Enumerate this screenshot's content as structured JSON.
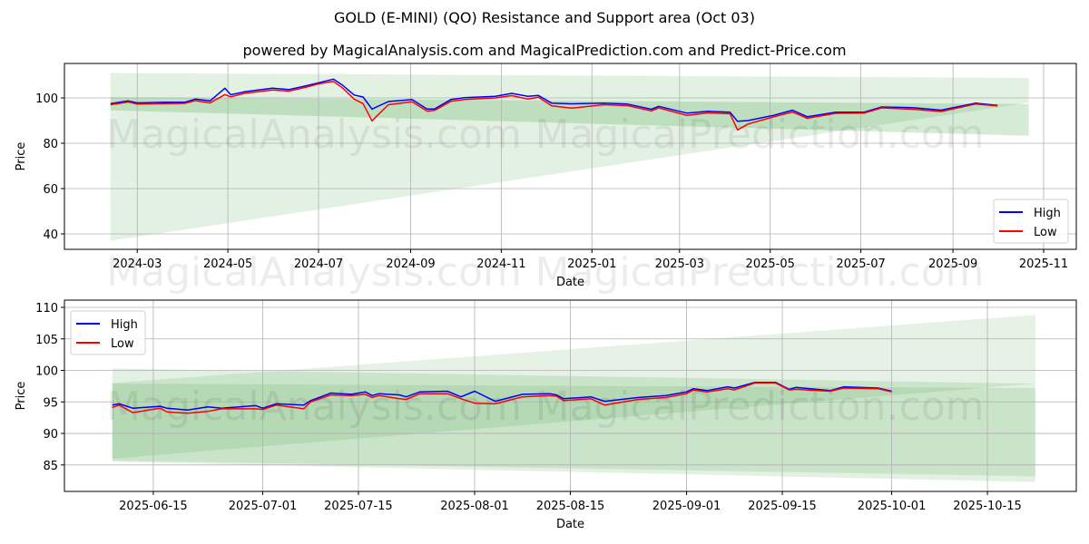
{
  "title": "GOLD (E-MINI) (QO) Resistance and Support area (Oct 03)",
  "subtitle": "powered by MagicalAnalysis.com and MagicalPrediction.com and Predict-Price.com",
  "watermarks": [
    "MagicalAnalysis.com",
    "MagicalPrediction.com"
  ],
  "colors": {
    "high": "#0000ff",
    "low": "#ff0000",
    "band": "#008000"
  },
  "chart_data": [
    {
      "type": "line",
      "xlabel": "Date",
      "ylabel": "Price",
      "xlim": [
        "2024-01-12",
        "2025-11-23"
      ],
      "ylim": [
        33.2,
        115.2
      ],
      "grid": true,
      "legend": "lower-right",
      "yticks": [
        40,
        60,
        80,
        100
      ],
      "xticks": [
        {
          "date": "2024-03-01",
          "label": "2024-03"
        },
        {
          "date": "2024-05-01",
          "label": "2024-05"
        },
        {
          "date": "2024-07-01",
          "label": "2024-07"
        },
        {
          "date": "2024-09-01",
          "label": "2024-09"
        },
        {
          "date": "2024-11-01",
          "label": "2024-11"
        },
        {
          "date": "2025-01-01",
          "label": "2025-01"
        },
        {
          "date": "2025-03-01",
          "label": "2025-03"
        },
        {
          "date": "2025-05-01",
          "label": "2025-05"
        },
        {
          "date": "2025-07-01",
          "label": "2025-07"
        },
        {
          "date": "2025-09-01",
          "label": "2025-09"
        },
        {
          "date": "2025-11-01",
          "label": "2025-11"
        }
      ],
      "bands": [
        {
          "start": "2024-02-12",
          "end": "2025-10-22",
          "start_range": [
            37,
            111
          ],
          "end_range": [
            97.9,
            108.8
          ],
          "opacity": 0.11
        },
        {
          "start": "2024-02-12",
          "end": "2025-10-22",
          "start_range": [
            94.5,
            100.3
          ],
          "end_range": [
            83.3,
            97.3
          ],
          "opacity": 0.16
        }
      ],
      "x": [
        "2024-02-12",
        "2024-02-24",
        "2024-03-01",
        "2024-03-19",
        "2024-04-02",
        "2024-04-09",
        "2024-04-19",
        "2024-04-29",
        "2024-05-03",
        "2024-05-12",
        "2024-05-31",
        "2024-06-11",
        "2024-06-23",
        "2024-07-01",
        "2024-07-11",
        "2024-07-17",
        "2024-07-25",
        "2024-07-31",
        "2024-08-06",
        "2024-08-17",
        "2024-09-02",
        "2024-09-12",
        "2024-09-17",
        "2024-09-28",
        "2024-10-07",
        "2024-10-28",
        "2024-11-08",
        "2024-11-19",
        "2024-11-26",
        "2024-12-05",
        "2024-12-18",
        "2025-01-09",
        "2025-01-25",
        "2025-02-10",
        "2025-02-15",
        "2025-03-06",
        "2025-03-20",
        "2025-04-04",
        "2025-04-09",
        "2025-04-16",
        "2025-05-03",
        "2025-05-16",
        "2025-05-26",
        "2025-06-14",
        "2025-07-03",
        "2025-07-15",
        "2025-08-05",
        "2025-08-24",
        "2025-09-16",
        "2025-10-01"
      ],
      "series": [
        {
          "name": "High",
          "values": [
            97.5,
            98.7,
            97.8,
            98.1,
            98.1,
            99.5,
            98.7,
            104.3,
            101.4,
            102.7,
            104.3,
            103.7,
            105.4,
            106.7,
            108.3,
            105.7,
            101.3,
            100.4,
            95.1,
            98.4,
            99.3,
            95.1,
            95.1,
            99.3,
            100.1,
            100.7,
            102.0,
            100.7,
            101.1,
            97.7,
            97.4,
            97.7,
            97.3,
            95.0,
            96.3,
            93.3,
            94.1,
            93.7,
            89.7,
            90.0,
            92.3,
            94.6,
            91.7,
            93.7,
            93.7,
            96.0,
            95.7,
            94.6,
            97.7,
            96.7
          ]
        },
        {
          "name": "Low",
          "values": [
            97.0,
            98.2,
            97.3,
            97.5,
            97.6,
            98.8,
            97.8,
            101.5,
            100.5,
            102.0,
            103.5,
            103.0,
            104.8,
            106.2,
            107.3,
            104.5,
            99.5,
            97.5,
            89.9,
            97.0,
            98.3,
            94.2,
            94.5,
            98.5,
            99.3,
            100.0,
            101.0,
            99.5,
            100.3,
            96.5,
            95.5,
            97.0,
            96.6,
            94.3,
            95.6,
            92.3,
            93.4,
            93.0,
            85.9,
            88.5,
            91.6,
            93.8,
            91.0,
            93.2,
            93.3,
            95.6,
            95.0,
            94.0,
            97.3,
            96.5
          ]
        }
      ]
    },
    {
      "type": "line",
      "xlabel": "Date",
      "ylabel": "Price",
      "xlim": [
        "2025-06-02",
        "2025-10-28"
      ],
      "ylim": [
        80.8,
        111.15
      ],
      "grid": true,
      "legend": "upper-left",
      "yticks": [
        85,
        90,
        95,
        100,
        105,
        110
      ],
      "xticks": [
        {
          "date": "2025-06-15",
          "label": "2025-06-15"
        },
        {
          "date": "2025-07-01",
          "label": "2025-07-01"
        },
        {
          "date": "2025-07-15",
          "label": "2025-07-15"
        },
        {
          "date": "2025-08-01",
          "label": "2025-08-01"
        },
        {
          "date": "2025-08-15",
          "label": "2025-08-15"
        },
        {
          "date": "2025-09-01",
          "label": "2025-09-01"
        },
        {
          "date": "2025-09-15",
          "label": "2025-09-15"
        },
        {
          "date": "2025-10-01",
          "label": "2025-10-01"
        },
        {
          "date": "2025-10-15",
          "label": "2025-10-15"
        }
      ],
      "bands": [
        {
          "start": "2025-06-09",
          "end": "2025-10-22",
          "start_range": [
            85.5,
            100.3
          ],
          "end_range": [
            82.3,
            97.9
          ],
          "opacity": 0.11
        },
        {
          "start": "2025-06-09",
          "end": "2025-10-22",
          "start_range": [
            85.7,
            97.9
          ],
          "end_range": [
            83.2,
            97.2
          ],
          "opacity": 0.11
        },
        {
          "start": "2025-06-09",
          "end": "2025-10-22",
          "start_range": [
            86.0,
            98.0
          ],
          "end_range": [
            97.9,
            108.8
          ],
          "opacity": 0.1
        }
      ],
      "x": [
        "2025-06-09",
        "2025-06-10",
        "2025-06-12",
        "2025-06-16",
        "2025-06-17",
        "2025-06-20",
        "2025-06-23",
        "2025-06-25",
        "2025-06-30",
        "2025-07-01",
        "2025-07-03",
        "2025-07-07",
        "2025-07-08",
        "2025-07-11",
        "2025-07-14",
        "2025-07-16",
        "2025-07-17",
        "2025-07-18",
        "2025-07-21",
        "2025-07-22",
        "2025-07-24",
        "2025-07-28",
        "2025-07-30",
        "2025-08-01",
        "2025-08-04",
        "2025-08-08",
        "2025-08-12",
        "2025-08-13",
        "2025-08-14",
        "2025-08-18",
        "2025-08-20",
        "2025-08-25",
        "2025-08-29",
        "2025-09-01",
        "2025-09-02",
        "2025-09-04",
        "2025-09-07",
        "2025-09-08",
        "2025-09-11",
        "2025-09-14",
        "2025-09-16",
        "2025-09-17",
        "2025-09-22",
        "2025-09-24",
        "2025-09-29",
        "2025-10-01"
      ],
      "series": [
        {
          "name": "High",
          "values": [
            94.5,
            94.7,
            94.0,
            94.3,
            94.0,
            93.7,
            94.2,
            94.0,
            94.4,
            94.0,
            94.7,
            94.5,
            95.2,
            96.4,
            96.2,
            96.6,
            96.0,
            96.3,
            96.1,
            95.8,
            96.6,
            96.7,
            95.8,
            96.7,
            95.1,
            96.2,
            96.3,
            96.1,
            95.5,
            95.8,
            95.1,
            95.7,
            96.0,
            96.6,
            97.1,
            96.8,
            97.4,
            97.2,
            98.1,
            98.1,
            97.0,
            97.3,
            96.8,
            97.4,
            97.2,
            96.7
          ]
        },
        {
          "name": "Low",
          "values": [
            94.1,
            94.5,
            93.3,
            94.0,
            93.4,
            93.2,
            93.5,
            93.9,
            93.9,
            93.8,
            94.5,
            93.9,
            95.0,
            96.1,
            96.0,
            96.2,
            95.7,
            96.0,
            95.5,
            95.4,
            96.3,
            96.3,
            95.5,
            94.8,
            94.7,
            95.8,
            96.0,
            95.9,
            95.2,
            95.5,
            94.5,
            95.4,
            95.7,
            96.3,
            96.9,
            96.6,
            97.1,
            96.9,
            98.0,
            98.0,
            96.9,
            97.0,
            96.7,
            97.2,
            97.1,
            96.6
          ]
        }
      ]
    }
  ]
}
